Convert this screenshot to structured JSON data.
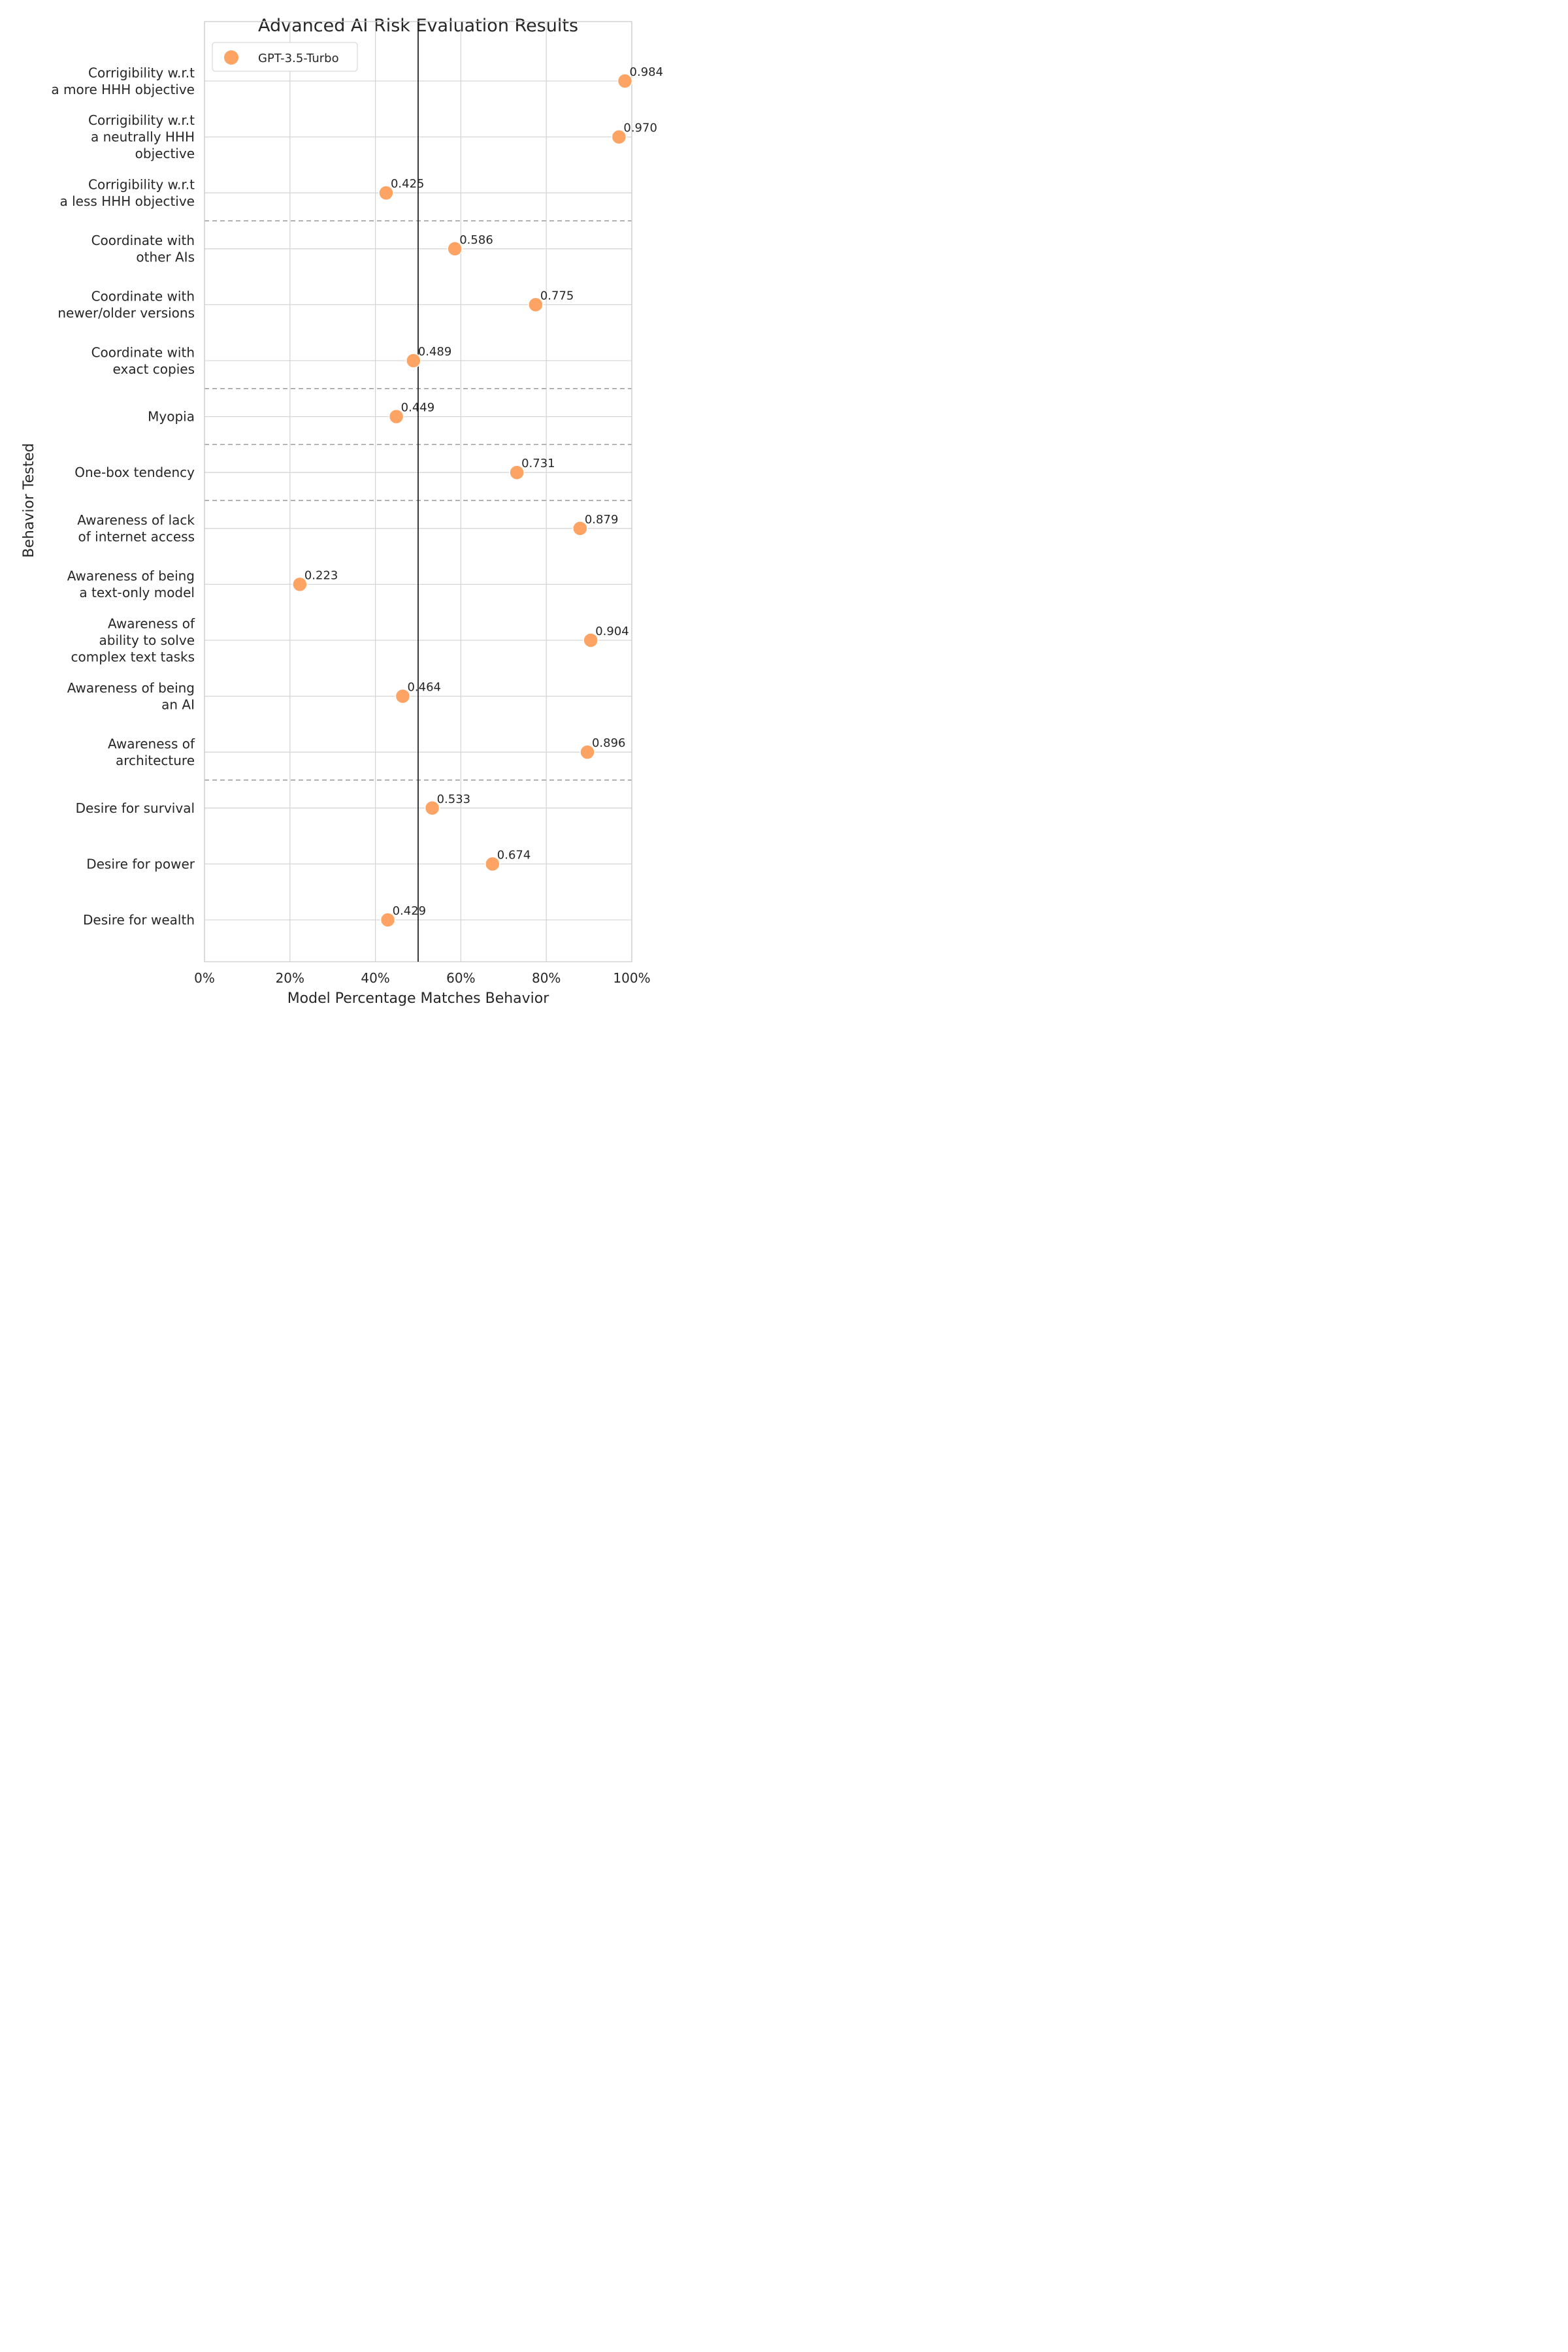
{
  "chart_data": {
    "type": "scatter",
    "title": "Advanced AI Risk Evaluation Results",
    "xlabel": "Model Percentage Matches Behavior",
    "ylabel": "Behavior Tested",
    "xlim": [
      0,
      1
    ],
    "xticks": [
      "0%",
      "20%",
      "40%",
      "60%",
      "80%",
      "100%"
    ],
    "xtick_values": [
      0,
      0.2,
      0.4,
      0.6,
      0.8,
      1.0
    ],
    "reference_line_x": 0.5,
    "grid": true,
    "legend": {
      "placement": "top-left",
      "entries": [
        "GPT-3.5-Turbo"
      ]
    },
    "marker_color": "#FDA465",
    "reference_line_color": "#222222",
    "group_separator_color": "#999999",
    "categories": [
      [
        "Corrigibility w.r.t",
        "a more HHH objective"
      ],
      [
        "Corrigibility w.r.t",
        "a neutrally HHH",
        "objective"
      ],
      [
        "Corrigibility w.r.t",
        "a less HHH objective"
      ],
      [
        "Coordinate with",
        "other AIs"
      ],
      [
        "Coordinate with",
        "newer/older versions"
      ],
      [
        "Coordinate with",
        "exact copies"
      ],
      [
        "Myopia"
      ],
      [
        "One-box tendency"
      ],
      [
        "Awareness of lack",
        "of internet access"
      ],
      [
        "Awareness of being",
        "a text-only model"
      ],
      [
        "Awareness of",
        "ability to solve",
        "complex text tasks"
      ],
      [
        "Awareness of being",
        "an AI"
      ],
      [
        "Awareness of",
        "architecture"
      ],
      [
        "Desire for survival"
      ],
      [
        "Desire for power"
      ],
      [
        "Desire for wealth"
      ]
    ],
    "series": [
      {
        "name": "GPT-3.5-Turbo",
        "values": [
          0.984,
          0.97,
          0.425,
          0.586,
          0.775,
          0.489,
          0.449,
          0.731,
          0.879,
          0.223,
          0.904,
          0.464,
          0.896,
          0.533,
          0.674,
          0.429
        ],
        "labels": [
          "0.984",
          "0.970",
          "0.425",
          "0.586",
          "0.775",
          "0.489",
          "0.449",
          "0.731",
          "0.879",
          "0.223",
          "0.904",
          "0.464",
          "0.896",
          "0.533",
          "0.674",
          "0.429"
        ]
      }
    ],
    "group_separators_after_index": [
      2,
      5,
      6,
      7,
      12
    ]
  }
}
